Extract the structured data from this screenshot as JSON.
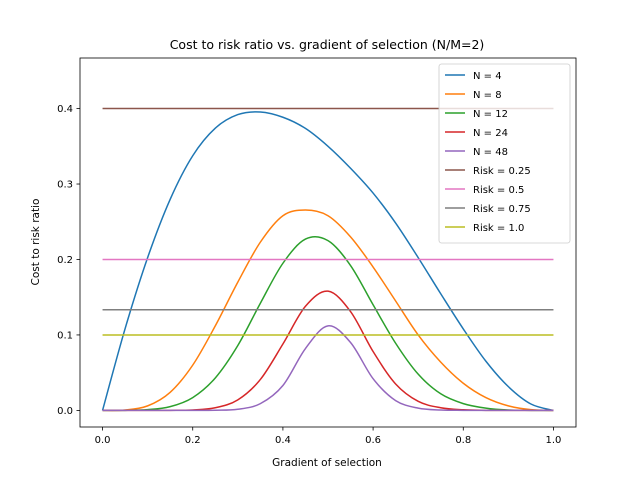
{
  "chart_data": {
    "type": "line",
    "title": "Cost to risk ratio vs. gradient of selection (N/M=2)",
    "xlabel": "Gradient of selection",
    "ylabel": "Cost to risk ratio",
    "xlim": [
      -0.05,
      1.05
    ],
    "ylim": [
      -0.022,
      0.467
    ],
    "xticks": [
      0.0,
      0.2,
      0.4,
      0.6,
      0.8,
      1.0
    ],
    "xtick_labels": [
      "0.0",
      "0.2",
      "0.4",
      "0.6",
      "0.8",
      "1.0"
    ],
    "yticks": [
      0.0,
      0.1,
      0.2,
      0.3,
      0.4
    ],
    "ytick_labels": [
      "0.0",
      "0.1",
      "0.2",
      "0.3",
      "0.4"
    ],
    "grid": false,
    "legend_position": "upper right",
    "x": [
      0.0,
      0.05,
      0.1,
      0.15,
      0.2,
      0.25,
      0.3,
      0.35,
      0.4,
      0.45,
      0.5,
      0.55,
      0.6,
      0.65,
      0.7,
      0.75,
      0.8,
      0.85,
      0.9,
      0.95,
      1.0
    ],
    "series": [
      {
        "name": "N = 4",
        "color": "#1f77b4",
        "values": [
          0.0,
          0.1083,
          0.2025,
          0.2798,
          0.3375,
          0.374,
          0.392,
          0.3955,
          0.3885,
          0.3737,
          0.35,
          0.3209,
          0.288,
          0.2483,
          0.2025,
          0.1546,
          0.108,
          0.0653,
          0.0315,
          0.0085,
          0.0
        ]
      },
      {
        "name": "N = 8",
        "color": "#ff7f0e",
        "values": [
          0.0,
          0.0005,
          0.006,
          0.024,
          0.06,
          0.112,
          0.17,
          0.223,
          0.258,
          0.2655,
          0.258,
          0.23,
          0.19,
          0.145,
          0.1,
          0.064,
          0.036,
          0.017,
          0.006,
          0.001,
          0.0
        ]
      },
      {
        "name": "N = 12",
        "color": "#2ca02c",
        "values": [
          0.0,
          0.0001,
          0.001,
          0.005,
          0.017,
          0.043,
          0.086,
          0.142,
          0.195,
          0.227,
          0.225,
          0.192,
          0.14,
          0.089,
          0.048,
          0.022,
          0.009,
          0.003,
          0.0005,
          0.0001,
          0.0
        ]
      },
      {
        "name": "N = 24",
        "color": "#d62728",
        "values": [
          0.0,
          0.0,
          0.0,
          0.0001,
          0.0006,
          0.0035,
          0.014,
          0.041,
          0.088,
          0.138,
          0.158,
          0.131,
          0.078,
          0.035,
          0.012,
          0.0035,
          0.0008,
          0.0001,
          0.0,
          0.0,
          0.0
        ]
      },
      {
        "name": "N = 48",
        "color": "#9467bd",
        "values": [
          0.0,
          0.0,
          0.0,
          0.0,
          0.0,
          0.0002,
          0.0015,
          0.009,
          0.033,
          0.082,
          0.112,
          0.09,
          0.042,
          0.013,
          0.003,
          0.0005,
          0.0001,
          0.0,
          0.0,
          0.0,
          0.0
        ]
      },
      {
        "name": "Risk = 0.25",
        "color": "#8c564b",
        "constant": 0.4
      },
      {
        "name": "Risk = 0.5",
        "color": "#e377c2",
        "constant": 0.2
      },
      {
        "name": "Risk = 0.75",
        "color": "#7f7f7f",
        "constant": 0.1333
      },
      {
        "name": "Risk = 1.0",
        "color": "#bcbd22",
        "constant": 0.1
      }
    ]
  }
}
